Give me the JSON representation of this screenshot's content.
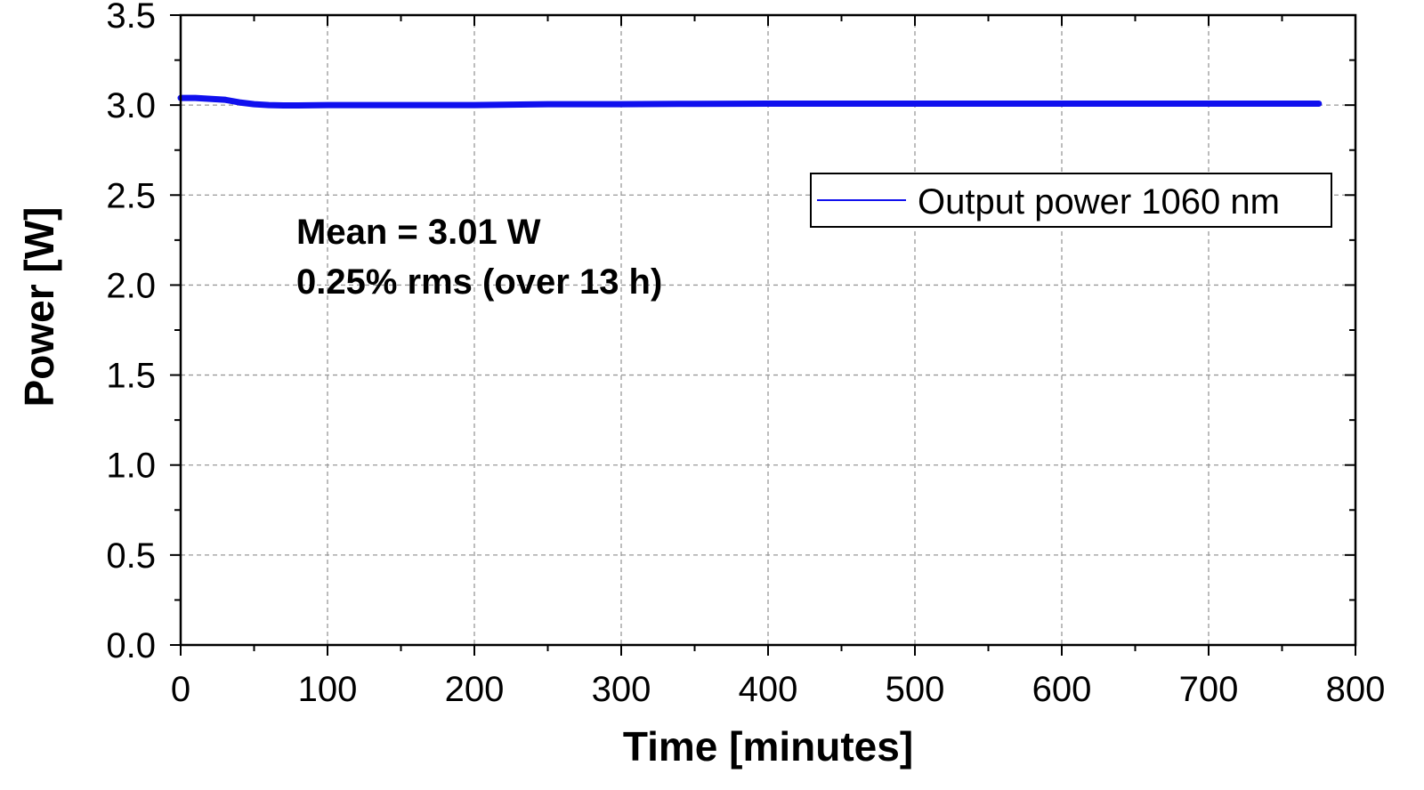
{
  "chart_data": {
    "type": "line",
    "title": "",
    "xlabel": "Time [minutes]",
    "ylabel": "Power [W]",
    "xlim": [
      0,
      800
    ],
    "ylim": [
      0.0,
      3.5
    ],
    "xticks": [
      "0",
      "100",
      "200",
      "300",
      "400",
      "500",
      "600",
      "700",
      "800"
    ],
    "yticks": [
      "0.0",
      "0.5",
      "1.0",
      "1.5",
      "2.0",
      "2.5",
      "3.0",
      "3.5"
    ],
    "grid": true,
    "legend_position": "top-right",
    "annotations": [
      "Mean = 3.01 W",
      "0.25% rms (over 13 h)"
    ],
    "series": [
      {
        "name": "Output power 1060 nm",
        "color": "#1010ee",
        "x": [
          0,
          10,
          20,
          30,
          40,
          50,
          60,
          70,
          80,
          100,
          150,
          200,
          250,
          300,
          350,
          400,
          450,
          500,
          550,
          600,
          650,
          700,
          750,
          775
        ],
        "y": [
          3.04,
          3.04,
          3.035,
          3.03,
          3.015,
          3.005,
          3.0,
          2.998,
          2.998,
          3.0,
          3.0,
          3.0,
          3.005,
          3.005,
          3.007,
          3.008,
          3.008,
          3.008,
          3.008,
          3.008,
          3.008,
          3.008,
          3.008,
          3.008
        ]
      }
    ]
  }
}
